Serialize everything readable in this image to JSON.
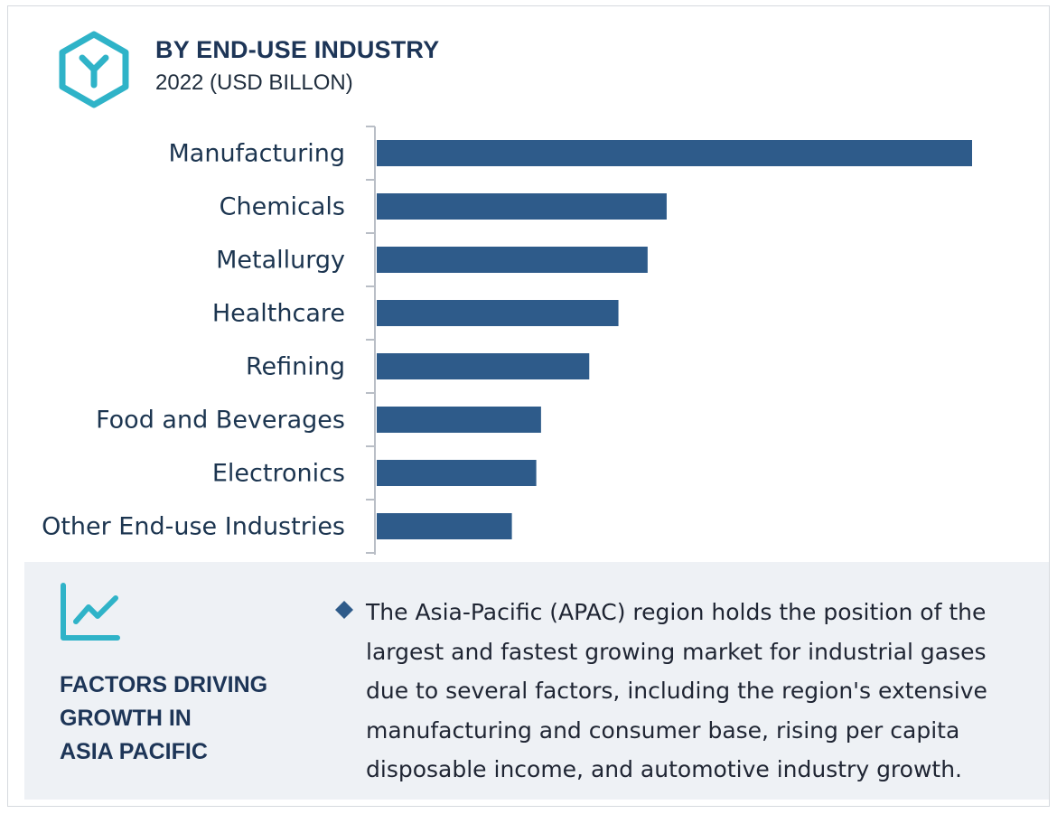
{
  "header": {
    "title": "BY END-USE INDUSTRY",
    "subtitle": "2022 (USD BILLON)",
    "logo_icon": "hexagon-y-logo-icon"
  },
  "colors": {
    "bar": "#2e5b8a",
    "accent": "#2fb3c8",
    "text": "#1d3557",
    "panel_bg": "#eef1f5"
  },
  "chart_data": {
    "type": "bar",
    "orientation": "horizontal",
    "categories": [
      "Manufacturing",
      "Chemicals",
      "Metallurgy",
      "Healthcare",
      "Refining",
      "Food and Beverages",
      "Electronics",
      "Other End-use Industries"
    ],
    "values": [
      100,
      48.7,
      45.5,
      40.6,
      35.7,
      27.6,
      26.8,
      22.7
    ],
    "value_scale": "relative (no axis values printed)",
    "title": "BY END-USE INDUSTRY",
    "subtitle": "2022 (USD BILLON)",
    "grid": false,
    "legend": "none"
  },
  "factors": {
    "icon": "trend-chart-icon",
    "heading_lines": [
      "FACTORS DRIVING",
      "GROWTH IN",
      "ASIA PACIFIC"
    ],
    "bullet_icon": "diamond-bullet-icon",
    "text": "The Asia-Pacific (APAC) region holds the position of the largest and fastest growing market for industrial gases due to several factors, including the region's extensive manufacturing and consumer base, rising per capita disposable income, and automotive industry growth."
  }
}
